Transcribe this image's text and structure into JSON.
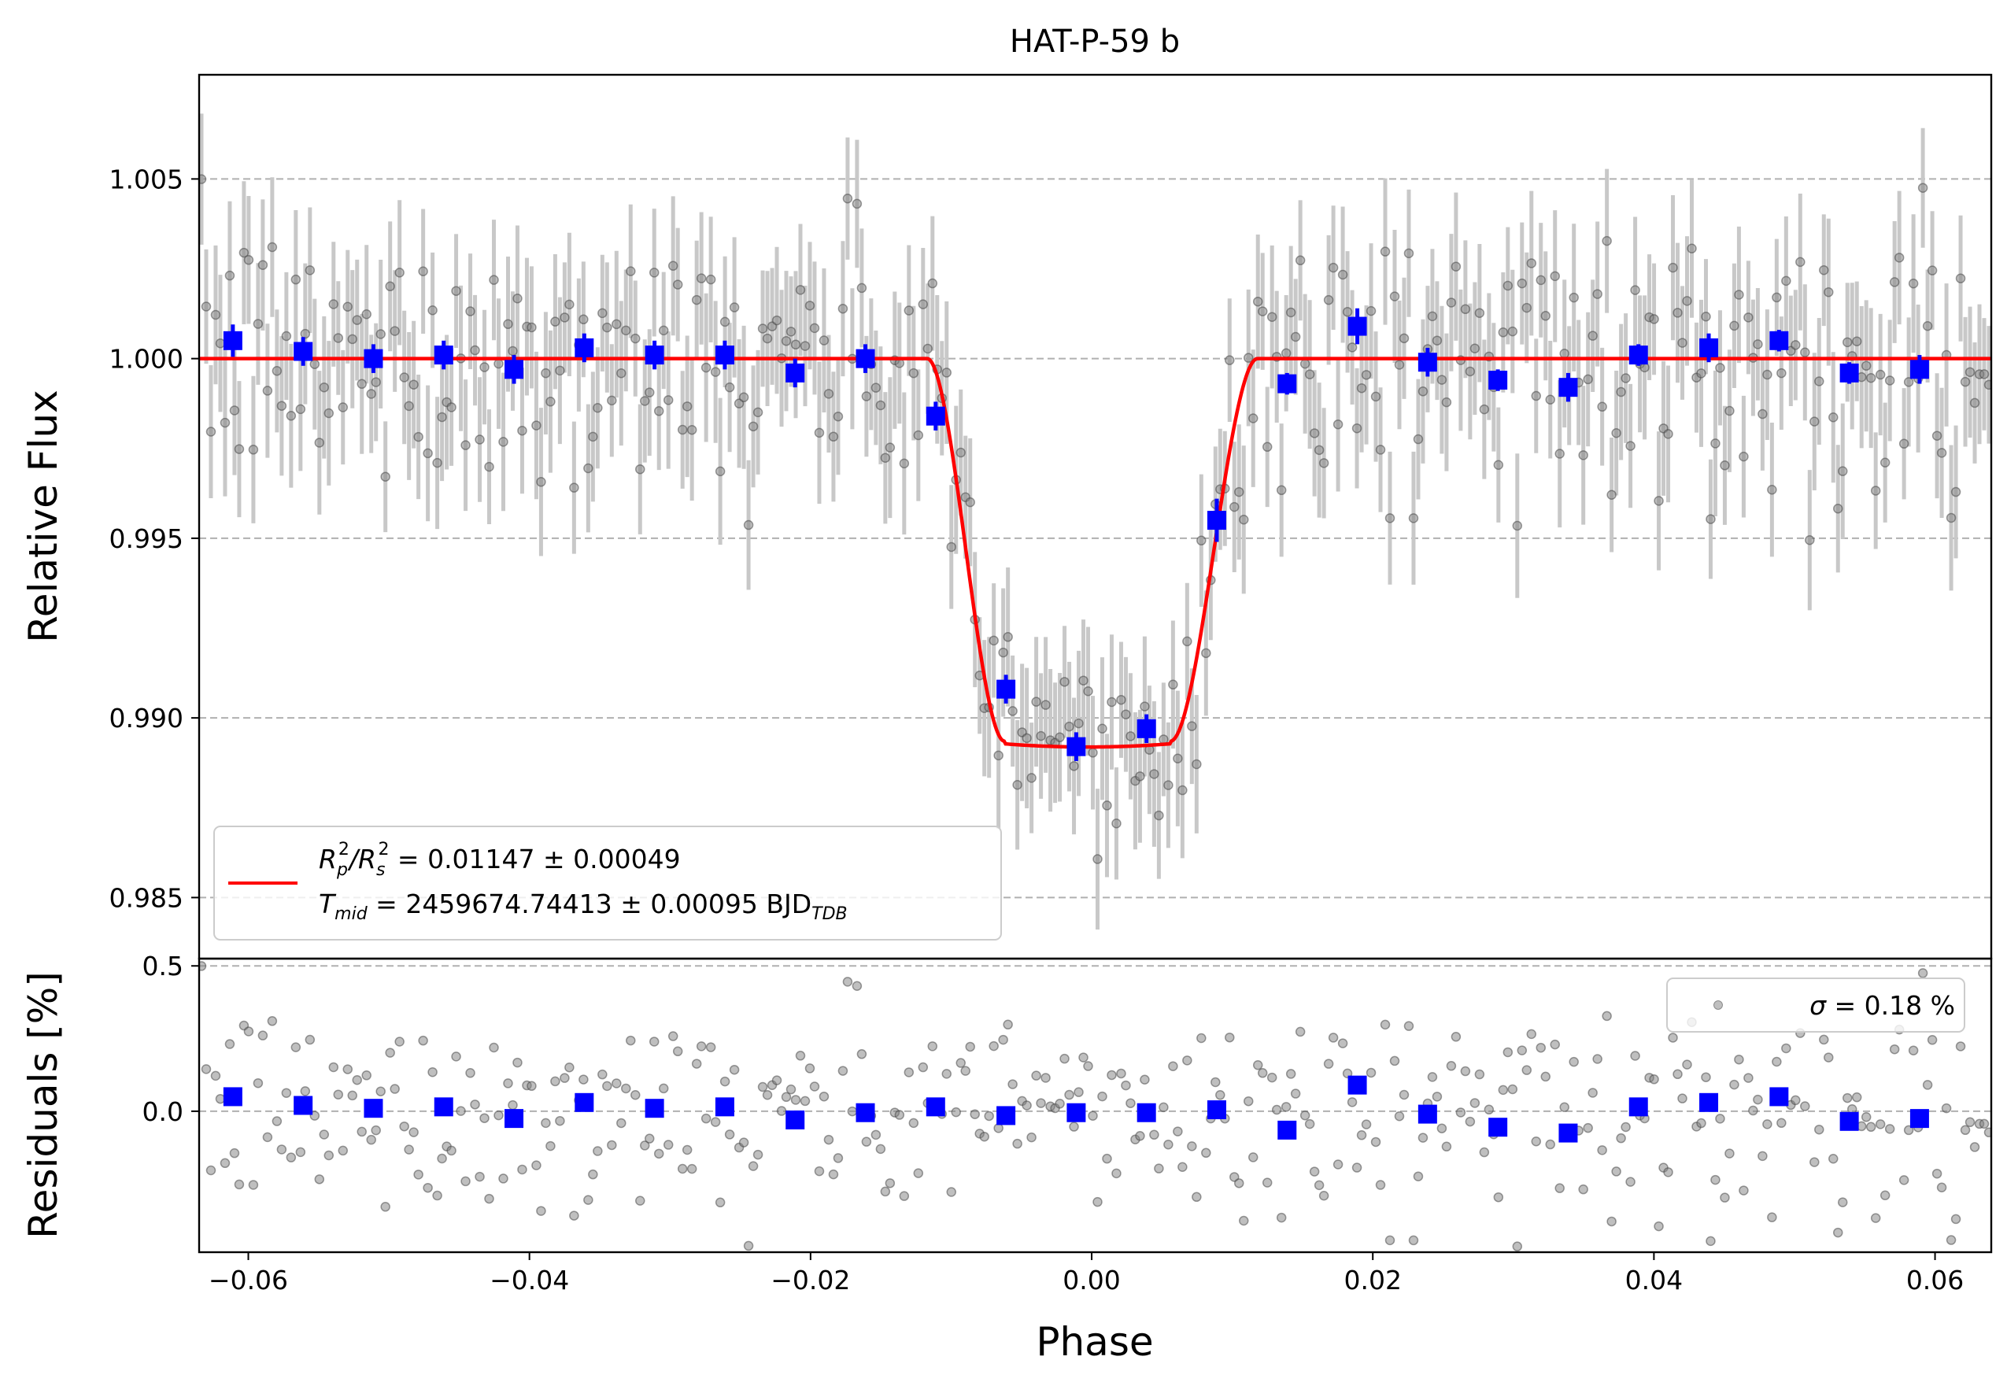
{
  "chart_data": [
    {
      "type": "scatter",
      "panel": "main",
      "title": "HAT-P-59 b",
      "xlabel": "",
      "ylabel": "Relative Flux",
      "xlim": [
        -0.0635,
        0.064
      ],
      "ylim": [
        0.9833,
        1.0079
      ],
      "yticks": [
        0.985,
        0.99,
        0.995,
        1.0,
        1.005
      ],
      "ytick_labels": [
        "0.985",
        "0.990",
        "0.995",
        "1.000",
        "1.005"
      ],
      "grid": "horizontal dashed",
      "legend_position": "lower-left",
      "legend": {
        "line1_label": "R_p^2/R_s^2 = 0.01147 ± 0.00049",
        "line1_main": "R",
        "line1_sub_a": "p",
        "line1_sup_a": "2",
        "line1_slash": "/R",
        "line1_sub_b": "s",
        "line1_sup_b": "2",
        "line1_rest": " = 0.01147 ± 0.00049",
        "line2_label": "T_mid = 2459674.74413 ± 0.00095 BJD_TDB",
        "line2_main": "T",
        "line2_sub": "mid",
        "line2_rest": " = 2459674.74413 ± 0.00095 BJD",
        "line2_tail_sub": "TDB"
      },
      "model": {
        "name": "transit model",
        "color": "#ff0000",
        "depth": 0.01081,
        "t_mid_phase": -0.0003,
        "ingress_start": -0.0117,
        "ingress_end": -0.0062,
        "egress_start": 0.0056,
        "egress_end": 0.0118
      },
      "binned": {
        "color": "#0000ff",
        "x": [
          -0.0611,
          -0.0561,
          -0.0511,
          -0.0461,
          -0.0411,
          -0.0361,
          -0.0311,
          -0.0261,
          -0.0211,
          -0.0161,
          -0.0111,
          -0.0061,
          -0.0011,
          0.0039,
          0.0089,
          0.0139,
          0.0189,
          0.0239,
          0.0289,
          0.0339,
          0.0389,
          0.0439,
          0.0489,
          0.0539,
          0.0589
        ],
        "y": [
          1.0005,
          1.0002,
          1.0,
          1.0001,
          0.9997,
          1.0003,
          1.0001,
          1.0001,
          0.9996,
          1.0,
          0.9984,
          0.9908,
          0.9892,
          0.9897,
          0.9955,
          0.9993,
          1.0009,
          0.9999,
          0.9994,
          0.9992,
          1.0001,
          1.0003,
          1.0005,
          0.9996,
          0.9997
        ],
        "err": [
          0.00045,
          0.0004,
          0.0004,
          0.0004,
          0.0004,
          0.0004,
          0.0004,
          0.0004,
          0.0004,
          0.0004,
          0.0004,
          0.0004,
          0.0004,
          0.0004,
          0.0006,
          0.0003,
          0.0005,
          0.0004,
          0.0003,
          0.0004,
          0.0003,
          0.0004,
          0.0003,
          0.0003,
          0.0004
        ]
      },
      "raw": {
        "color": "#808080",
        "count": 380,
        "typical_error": 0.0018,
        "scatter": 0.0018
      }
    },
    {
      "type": "scatter",
      "panel": "residuals",
      "xlabel": "Phase",
      "ylabel": "Residuals [%]",
      "xlim": [
        -0.0635,
        0.064
      ],
      "ylim": [
        -0.485,
        0.525
      ],
      "xticks": [
        -0.06,
        -0.04,
        -0.02,
        0.0,
        0.02,
        0.04,
        0.06
      ],
      "xtick_labels": [
        "−0.06",
        "−0.04",
        "−0.02",
        "0.00",
        "0.02",
        "0.04",
        "0.06"
      ],
      "yticks": [
        0.0,
        0.5
      ],
      "ytick_labels": [
        "0.0",
        "0.5"
      ],
      "grid": "horizontal dashed",
      "legend_position": "upper-right",
      "legend": {
        "label": "σ = 0.18 %",
        "sym": "σ",
        "rest": " = 0.18 %"
      },
      "binned": {
        "color": "#0000ff",
        "x": [
          -0.0611,
          -0.0561,
          -0.0511,
          -0.0461,
          -0.0411,
          -0.0361,
          -0.0311,
          -0.0261,
          -0.0211,
          -0.0161,
          -0.0111,
          -0.0061,
          -0.0011,
          0.0039,
          0.0089,
          0.0139,
          0.0189,
          0.0239,
          0.0289,
          0.0339,
          0.0389,
          0.0439,
          0.0489,
          0.0539,
          0.0589
        ],
        "y": [
          0.05,
          0.02,
          0.01,
          0.015,
          -0.025,
          0.03,
          0.01,
          0.015,
          -0.03,
          -0.005,
          0.015,
          -0.015,
          -0.005,
          -0.005,
          0.005,
          -0.065,
          0.09,
          -0.01,
          -0.055,
          -0.075,
          0.015,
          0.03,
          0.05,
          -0.035,
          -0.025
        ]
      },
      "raw": {
        "color": "#808080",
        "count": 380,
        "scatter": 0.18
      }
    }
  ]
}
